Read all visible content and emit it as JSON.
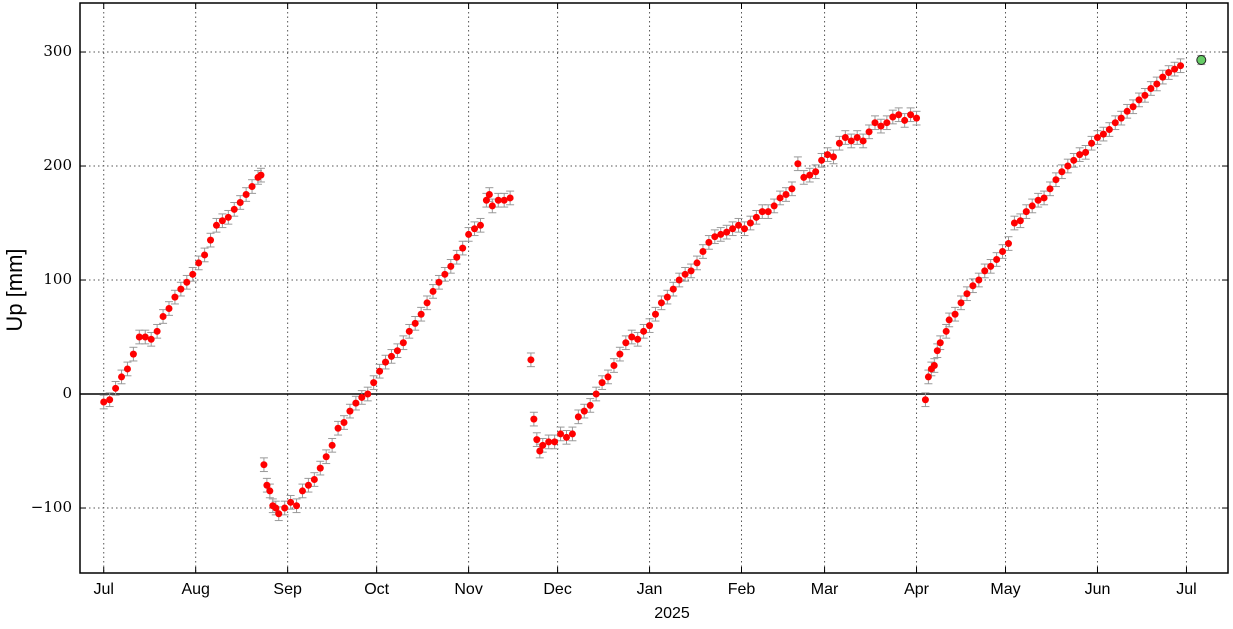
{
  "chart_data": {
    "type": "scatter",
    "ylabel": "Up [mm]",
    "xlabel": "2025",
    "xlim": [
      -8,
      379
    ],
    "ylim": [
      -157,
      343
    ],
    "xticks": [
      {
        "value": 0,
        "label": "Jul"
      },
      {
        "value": 31,
        "label": "Aug"
      },
      {
        "value": 62,
        "label": "Sep"
      },
      {
        "value": 92,
        "label": "Oct"
      },
      {
        "value": 123,
        "label": "Nov"
      },
      {
        "value": 153,
        "label": "Dec"
      },
      {
        "value": 184,
        "label": "Jan"
      },
      {
        "value": 215,
        "label": "Feb"
      },
      {
        "value": 243,
        "label": "Mar"
      },
      {
        "value": 274,
        "label": "Apr"
      },
      {
        "value": 304,
        "label": "May"
      },
      {
        "value": 335,
        "label": "Jun"
      },
      {
        "value": 365,
        "label": "Jul"
      }
    ],
    "yticks": [
      {
        "value": -100,
        "label": "−100"
      },
      0,
      100,
      200,
      300
    ],
    "grid": true,
    "series": [
      {
        "color": "#ff0000",
        "error": 6,
        "x": [
          0,
          2,
          4,
          6,
          8,
          10,
          12,
          14,
          16,
          18,
          20,
          22,
          24,
          26,
          28,
          30,
          32,
          34,
          36,
          38,
          40,
          42,
          44,
          46,
          48,
          50,
          52,
          53,
          54,
          55,
          56,
          57,
          58,
          59,
          61,
          63,
          65,
          67,
          69,
          71,
          73,
          75,
          77,
          79,
          81,
          83,
          85,
          87,
          89,
          91,
          93,
          95,
          97,
          99,
          101,
          103,
          105,
          107,
          109,
          111,
          113,
          115,
          117,
          119,
          121,
          123,
          125,
          127,
          129,
          130,
          131,
          133,
          135,
          137,
          144,
          145,
          146,
          147,
          148,
          150,
          152,
          154,
          156,
          158,
          160,
          162,
          164,
          166,
          168,
          170,
          172,
          174,
          176,
          178,
          180,
          182,
          184,
          186,
          188,
          190,
          192,
          194,
          196,
          198,
          200,
          202,
          204,
          206,
          208,
          210,
          212,
          214,
          216,
          218,
          220,
          222,
          224,
          226,
          228,
          230,
          232,
          234,
          236,
          238,
          240,
          242,
          244,
          246,
          248,
          250,
          252,
          254,
          256,
          258,
          260,
          262,
          264,
          266,
          268,
          270,
          272,
          274,
          277,
          278,
          279,
          280,
          281,
          282,
          284,
          285,
          287,
          289,
          291,
          293,
          295,
          297,
          299,
          301,
          303,
          305,
          307,
          309,
          311,
          313,
          315,
          317,
          319,
          321,
          323,
          325,
          327,
          329,
          331,
          333,
          335,
          337,
          339,
          341,
          343,
          345,
          347,
          349,
          351,
          353,
          355,
          357,
          359,
          361,
          363
        ],
        "values": [
          -7,
          -5,
          5,
          15,
          22,
          35,
          50,
          50,
          48,
          55,
          68,
          75,
          85,
          92,
          98,
          105,
          115,
          122,
          135,
          148,
          152,
          155,
          162,
          168,
          175,
          182,
          190,
          192,
          -62,
          -80,
          -85,
          -98,
          -100,
          -105,
          -100,
          -95,
          -98,
          -85,
          -80,
          -75,
          -65,
          -55,
          -45,
          -30,
          -25,
          -15,
          -8,
          -3,
          0,
          10,
          20,
          28,
          33,
          38,
          45,
          55,
          62,
          70,
          80,
          90,
          98,
          105,
          112,
          120,
          128,
          140,
          145,
          148,
          170,
          175,
          165,
          170,
          170,
          172,
          30,
          -22,
          -40,
          -50,
          -45,
          -42,
          -42,
          -35,
          -38,
          -35,
          -20,
          -15,
          -10,
          0,
          10,
          15,
          25,
          35,
          45,
          50,
          48,
          55,
          60,
          70,
          80,
          85,
          92,
          100,
          105,
          108,
          115,
          125,
          133,
          138,
          140,
          142,
          145,
          148,
          145,
          150,
          155,
          160,
          160,
          165,
          172,
          175,
          180,
          202,
          190,
          192,
          195,
          205,
          210,
          208,
          220,
          225,
          222,
          225,
          222,
          230,
          238,
          235,
          238,
          243,
          245,
          240,
          245,
          242,
          -5,
          15,
          22,
          25,
          38,
          45,
          55,
          65,
          70,
          80,
          88,
          95,
          100,
          108,
          112,
          118,
          125,
          132,
          150,
          152,
          160,
          165,
          170,
          172,
          180,
          188,
          195,
          200,
          205,
          210,
          212,
          220,
          225,
          228,
          232,
          238,
          242,
          248,
          252,
          258,
          262,
          268,
          272,
          278,
          282,
          285,
          288
        ]
      },
      {
        "color": "#66cc66",
        "error": 4,
        "x": [
          370
        ],
        "values": [
          293
        ]
      }
    ]
  }
}
